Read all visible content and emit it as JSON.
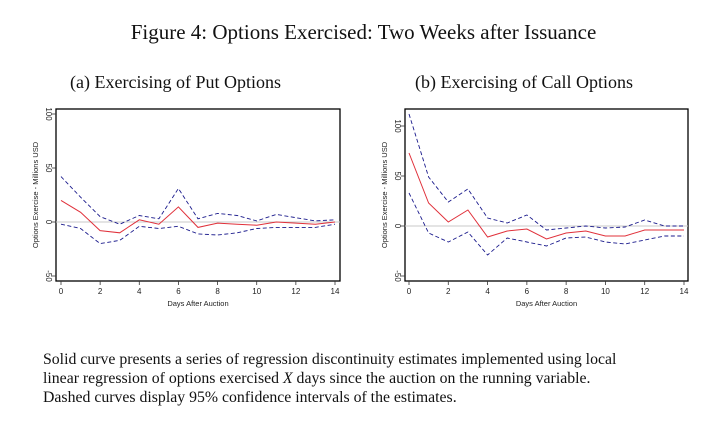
{
  "figure": {
    "title": "Figure 4: Options Exercised: Two Weeks after Issuance",
    "caption_line1": "Solid curve presents a series of regression discontinuity estimates implemented using local",
    "caption_line2_pre": "linear regression of options exercised ",
    "caption_line2_var": "X",
    "caption_line2_post": " days since the auction on the running variable.",
    "caption_line3": "Dashed curves display 95% confidence intervals of the estimates."
  },
  "colors": {
    "estimate": "#e0303a",
    "ci": "#1a1a8c",
    "zero_line": "#c8c8c8",
    "frame": "#000000"
  },
  "chart_data": [
    {
      "type": "line",
      "title": "(a) Exercising of Put Options",
      "xlabel": "Days After Auction",
      "ylabel": "Options Exercise - Millions USD",
      "xlim": [
        0,
        14
      ],
      "ylim": [
        -50,
        100
      ],
      "xticks": [
        0,
        2,
        4,
        6,
        8,
        10,
        12,
        14
      ],
      "yticks": [
        -50,
        0,
        50,
        100
      ],
      "reference_line": 0,
      "grid": false,
      "x": [
        0,
        1,
        2,
        3,
        4,
        5,
        6,
        7,
        8,
        9,
        10,
        11,
        12,
        13,
        14
      ],
      "series": [
        {
          "name": "Estimate",
          "style": "solid",
          "values": [
            20,
            9,
            -8,
            -10,
            2,
            -2,
            14,
            -5,
            -1,
            -2,
            -3,
            0,
            -1,
            -2,
            0
          ]
        },
        {
          "name": "Upper 95% CI",
          "style": "dashed",
          "values": [
            42,
            23,
            5,
            -2,
            6,
            3,
            31,
            3,
            8,
            6,
            1,
            7,
            4,
            1,
            2
          ]
        },
        {
          "name": "Lower 95% CI",
          "style": "dashed",
          "values": [
            -2,
            -6,
            -20,
            -17,
            -4,
            -6,
            -4,
            -11,
            -12,
            -10,
            -6,
            -5,
            -5,
            -5,
            -2
          ]
        }
      ]
    },
    {
      "type": "line",
      "title": "(b) Exercising of Call Options",
      "xlabel": "Days After Auction",
      "ylabel": "Options Exercise - Millions USD",
      "xlim": [
        0,
        14
      ],
      "ylim": [
        -50,
        100
      ],
      "xticks": [
        0,
        2,
        4,
        6,
        8,
        10,
        12,
        14
      ],
      "yticks": [
        -50,
        0,
        50,
        100
      ],
      "reference_line": 0,
      "grid": false,
      "x": [
        0,
        1,
        2,
        3,
        4,
        5,
        6,
        7,
        8,
        9,
        10,
        11,
        12,
        13,
        14
      ],
      "series": [
        {
          "name": "Estimate",
          "style": "solid",
          "values": [
            73,
            23,
            4,
            16,
            -11,
            -5,
            -3,
            -13,
            -7,
            -5,
            -10,
            -10,
            -4,
            -4,
            -4
          ]
        },
        {
          "name": "Upper 95% CI",
          "style": "dashed",
          "values": [
            112,
            49,
            24,
            37,
            8,
            3,
            11,
            -4,
            -2,
            0,
            -2,
            -1,
            6,
            0,
            0
          ]
        },
        {
          "name": "Lower 95% CI",
          "style": "dashed",
          "values": [
            33,
            -7,
            -16,
            -6,
            -29,
            -12,
            -16,
            -20,
            -12,
            -11,
            -16,
            -18,
            -14,
            -10,
            -10
          ]
        }
      ]
    }
  ]
}
